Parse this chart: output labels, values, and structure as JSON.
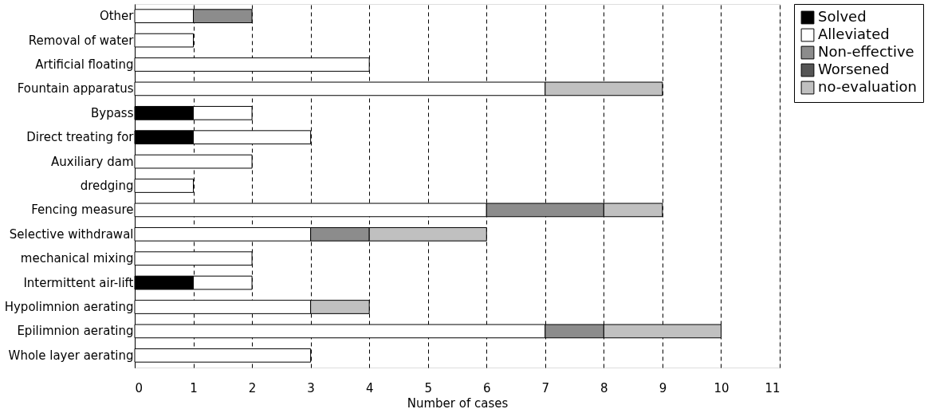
{
  "chart_data": {
    "type": "bar",
    "orientation": "horizontal",
    "stacked": true,
    "xlabel": "Number of cases",
    "categories": [
      "Other",
      "Removal of water",
      "Artificial floating",
      "Fountain apparatus",
      "Bypass",
      "Direct treating for",
      "Auxiliary dam",
      "dredging",
      "Fencing measure",
      "Selective withdrawal",
      "mechanical mixing",
      "Intermittent air-lift",
      "Hypolimnion aerating",
      "Epilimnion aerating ",
      "Whole  layer aerating"
    ],
    "series": [
      {
        "name": "Solved",
        "color": "#000000",
        "values": [
          0,
          0,
          0,
          0,
          1,
          1,
          0,
          0,
          0,
          0,
          0,
          1,
          0,
          0,
          0
        ]
      },
      {
        "name": "Alleviated",
        "color": "#ffffff",
        "values": [
          1,
          1,
          4,
          7,
          1,
          2,
          2,
          1,
          6,
          3,
          2,
          1,
          3,
          7,
          3
        ]
      },
      {
        "name": "Non-effective",
        "color": "#8c8c8c",
        "values": [
          1,
          0,
          0,
          0,
          0,
          0,
          0,
          0,
          2,
          1,
          0,
          0,
          0,
          1,
          0
        ]
      },
      {
        "name": "Worsened",
        "color": "#555555",
        "values": [
          0,
          0,
          0,
          0,
          0,
          0,
          0,
          0,
          0,
          0,
          0,
          0,
          0,
          0,
          0
        ]
      },
      {
        "name": "no-evaluation",
        "color": "#c0c0c0",
        "values": [
          0,
          0,
          0,
          2,
          0,
          0,
          0,
          0,
          1,
          2,
          0,
          0,
          1,
          2,
          0
        ]
      }
    ],
    "xlim": [
      0,
      11
    ],
    "xticks": [
      0,
      1,
      2,
      3,
      4,
      5,
      6,
      7,
      8,
      9,
      10,
      11
    ],
    "grid": "x",
    "legend": "top right"
  }
}
